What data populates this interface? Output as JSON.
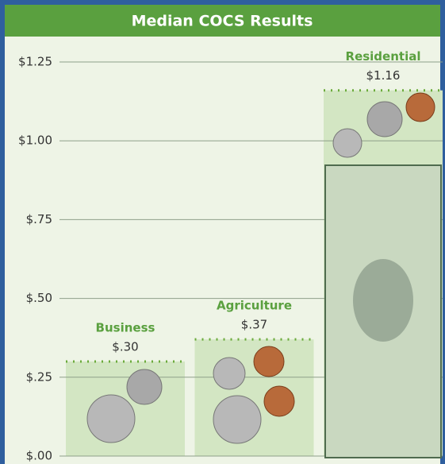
{
  "chart_data": {
    "type": "bar",
    "title": "Median COCS Results",
    "categories": [
      "Business",
      "Agriculture",
      "Residential"
    ],
    "values": [
      0.3,
      0.37,
      1.16
    ],
    "value_labels": [
      "$.30",
      "$.37",
      "$1.16"
    ],
    "color": "#d3e6c3",
    "ylim": [
      0,
      1.25
    ],
    "yticks": [
      {
        "value": 0,
        "label": "$.00"
      },
      {
        "value": 0.25,
        "label": "$.25"
      },
      {
        "value": 0.5,
        "label": "$.50"
      },
      {
        "value": 0.75,
        "label": "$.75"
      },
      {
        "value": 1.0,
        "label": "$1.00"
      },
      {
        "value": 1.25,
        "label": "$1.25"
      }
    ],
    "grid": true
  }
}
